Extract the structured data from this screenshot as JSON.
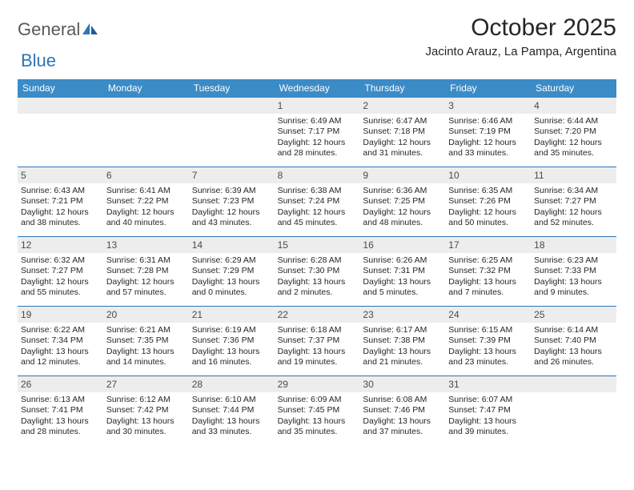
{
  "brand": {
    "part1": "General",
    "part2": "Blue"
  },
  "title": "October 2025",
  "location": "Jacinto Arauz, La Pampa, Argentina",
  "colors": {
    "header_bar": "#3b8bc6",
    "rule": "#2e75b6",
    "daynum_bg": "#ededed",
    "text": "#262626",
    "logo_gray": "#58595b",
    "logo_blue": "#2e75b6"
  },
  "dow": [
    "Sunday",
    "Monday",
    "Tuesday",
    "Wednesday",
    "Thursday",
    "Friday",
    "Saturday"
  ],
  "weeks": [
    [
      {
        "n": "",
        "sr": "",
        "ss": "",
        "dl": ""
      },
      {
        "n": "",
        "sr": "",
        "ss": "",
        "dl": ""
      },
      {
        "n": "",
        "sr": "",
        "ss": "",
        "dl": ""
      },
      {
        "n": "1",
        "sr": "6:49 AM",
        "ss": "7:17 PM",
        "dl": "12 hours and 28 minutes."
      },
      {
        "n": "2",
        "sr": "6:47 AM",
        "ss": "7:18 PM",
        "dl": "12 hours and 31 minutes."
      },
      {
        "n": "3",
        "sr": "6:46 AM",
        "ss": "7:19 PM",
        "dl": "12 hours and 33 minutes."
      },
      {
        "n": "4",
        "sr": "6:44 AM",
        "ss": "7:20 PM",
        "dl": "12 hours and 35 minutes."
      }
    ],
    [
      {
        "n": "5",
        "sr": "6:43 AM",
        "ss": "7:21 PM",
        "dl": "12 hours and 38 minutes."
      },
      {
        "n": "6",
        "sr": "6:41 AM",
        "ss": "7:22 PM",
        "dl": "12 hours and 40 minutes."
      },
      {
        "n": "7",
        "sr": "6:39 AM",
        "ss": "7:23 PM",
        "dl": "12 hours and 43 minutes."
      },
      {
        "n": "8",
        "sr": "6:38 AM",
        "ss": "7:24 PM",
        "dl": "12 hours and 45 minutes."
      },
      {
        "n": "9",
        "sr": "6:36 AM",
        "ss": "7:25 PM",
        "dl": "12 hours and 48 minutes."
      },
      {
        "n": "10",
        "sr": "6:35 AM",
        "ss": "7:26 PM",
        "dl": "12 hours and 50 minutes."
      },
      {
        "n": "11",
        "sr": "6:34 AM",
        "ss": "7:27 PM",
        "dl": "12 hours and 52 minutes."
      }
    ],
    [
      {
        "n": "12",
        "sr": "6:32 AM",
        "ss": "7:27 PM",
        "dl": "12 hours and 55 minutes."
      },
      {
        "n": "13",
        "sr": "6:31 AM",
        "ss": "7:28 PM",
        "dl": "12 hours and 57 minutes."
      },
      {
        "n": "14",
        "sr": "6:29 AM",
        "ss": "7:29 PM",
        "dl": "13 hours and 0 minutes."
      },
      {
        "n": "15",
        "sr": "6:28 AM",
        "ss": "7:30 PM",
        "dl": "13 hours and 2 minutes."
      },
      {
        "n": "16",
        "sr": "6:26 AM",
        "ss": "7:31 PM",
        "dl": "13 hours and 5 minutes."
      },
      {
        "n": "17",
        "sr": "6:25 AM",
        "ss": "7:32 PM",
        "dl": "13 hours and 7 minutes."
      },
      {
        "n": "18",
        "sr": "6:23 AM",
        "ss": "7:33 PM",
        "dl": "13 hours and 9 minutes."
      }
    ],
    [
      {
        "n": "19",
        "sr": "6:22 AM",
        "ss": "7:34 PM",
        "dl": "13 hours and 12 minutes."
      },
      {
        "n": "20",
        "sr": "6:21 AM",
        "ss": "7:35 PM",
        "dl": "13 hours and 14 minutes."
      },
      {
        "n": "21",
        "sr": "6:19 AM",
        "ss": "7:36 PM",
        "dl": "13 hours and 16 minutes."
      },
      {
        "n": "22",
        "sr": "6:18 AM",
        "ss": "7:37 PM",
        "dl": "13 hours and 19 minutes."
      },
      {
        "n": "23",
        "sr": "6:17 AM",
        "ss": "7:38 PM",
        "dl": "13 hours and 21 minutes."
      },
      {
        "n": "24",
        "sr": "6:15 AM",
        "ss": "7:39 PM",
        "dl": "13 hours and 23 minutes."
      },
      {
        "n": "25",
        "sr": "6:14 AM",
        "ss": "7:40 PM",
        "dl": "13 hours and 26 minutes."
      }
    ],
    [
      {
        "n": "26",
        "sr": "6:13 AM",
        "ss": "7:41 PM",
        "dl": "13 hours and 28 minutes."
      },
      {
        "n": "27",
        "sr": "6:12 AM",
        "ss": "7:42 PM",
        "dl": "13 hours and 30 minutes."
      },
      {
        "n": "28",
        "sr": "6:10 AM",
        "ss": "7:44 PM",
        "dl": "13 hours and 33 minutes."
      },
      {
        "n": "29",
        "sr": "6:09 AM",
        "ss": "7:45 PM",
        "dl": "13 hours and 35 minutes."
      },
      {
        "n": "30",
        "sr": "6:08 AM",
        "ss": "7:46 PM",
        "dl": "13 hours and 37 minutes."
      },
      {
        "n": "31",
        "sr": "6:07 AM",
        "ss": "7:47 PM",
        "dl": "13 hours and 39 minutes."
      },
      {
        "n": "",
        "sr": "",
        "ss": "",
        "dl": ""
      }
    ]
  ],
  "labels": {
    "sunrise": "Sunrise:",
    "sunset": "Sunset:",
    "daylight": "Daylight:"
  }
}
